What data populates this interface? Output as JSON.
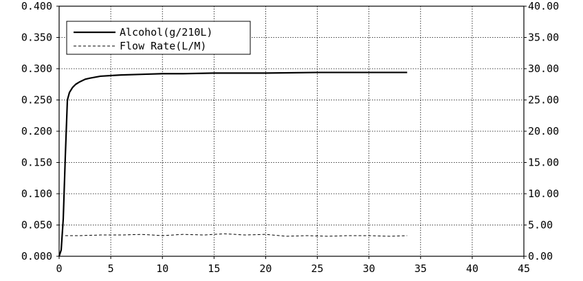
{
  "chart_data": {
    "type": "line",
    "title": "",
    "xlabel": "",
    "ylabel": "",
    "y2label": "",
    "xlim": [
      0,
      45
    ],
    "ylim": [
      0,
      0.4
    ],
    "y2lim": [
      0,
      40
    ],
    "grid": true,
    "legend_position": "top-left",
    "x_ticks": [
      0,
      5,
      10,
      15,
      20,
      25,
      30,
      35,
      40,
      45
    ],
    "x_tick_labels": [
      "0",
      "5",
      "10",
      "15",
      "20",
      "25",
      "30",
      "35",
      "40",
      "45"
    ],
    "y_ticks": [
      0,
      0.05,
      0.1,
      0.15,
      0.2,
      0.25,
      0.3,
      0.35,
      0.4
    ],
    "y_tick_labels": [
      "0.000",
      "0.050",
      "0.100",
      "0.150",
      "0.200",
      "0.250",
      "0.300",
      "0.350",
      "0.400"
    ],
    "y2_ticks": [
      0,
      5,
      10,
      15,
      20,
      25,
      30,
      35,
      40
    ],
    "y2_tick_labels": [
      "0.00",
      "5.00",
      "10.00",
      "15.00",
      "20.00",
      "25.00",
      "30.00",
      "35.00",
      "40.00"
    ],
    "series": [
      {
        "name": "Alcohol(g/210L)",
        "axis": "left",
        "style": "solid",
        "color": "#000000",
        "x": [
          0,
          0.2,
          0.4,
          0.6,
          0.8,
          1.0,
          1.3,
          1.6,
          2.0,
          2.5,
          3.0,
          4.0,
          5.0,
          6.0,
          8.0,
          10.0,
          12.0,
          15.0,
          20.0,
          25.0,
          30.0,
          33.7
        ],
        "y": [
          0,
          0.01,
          0.06,
          0.16,
          0.25,
          0.262,
          0.27,
          0.275,
          0.279,
          0.283,
          0.285,
          0.288,
          0.289,
          0.29,
          0.291,
          0.292,
          0.292,
          0.293,
          0.293,
          0.294,
          0.294,
          0.294
        ]
      },
      {
        "name": "Flow Rate(L/M)",
        "axis": "right",
        "style": "dashed",
        "color": "#000000",
        "x": [
          0.6,
          2,
          4,
          6,
          8,
          10,
          12,
          14,
          16,
          18,
          20,
          22,
          24,
          26,
          28,
          30,
          32,
          33.7
        ],
        "y": [
          3.3,
          3.3,
          3.4,
          3.4,
          3.5,
          3.3,
          3.5,
          3.4,
          3.6,
          3.4,
          3.5,
          3.2,
          3.3,
          3.2,
          3.3,
          3.3,
          3.2,
          3.3
        ]
      }
    ]
  }
}
